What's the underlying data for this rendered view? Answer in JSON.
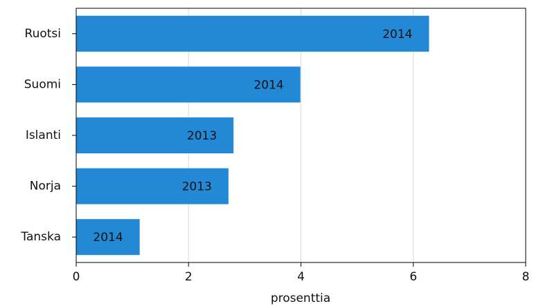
{
  "chart_data": {
    "type": "hbar",
    "x_label": "prosenttia",
    "categories": [
      "Ruotsi",
      "Suomi",
      "Islanti",
      "Norja",
      "Tanska"
    ],
    "values": [
      6.28,
      3.99,
      2.8,
      2.71,
      1.13
    ],
    "annotations": [
      "2014",
      "2014",
      "2013",
      "2013",
      "2014"
    ],
    "color": "#2389d7",
    "xlim": [
      0,
      8
    ],
    "xticks": [
      0,
      2,
      4,
      6,
      8
    ],
    "grid": true
  }
}
